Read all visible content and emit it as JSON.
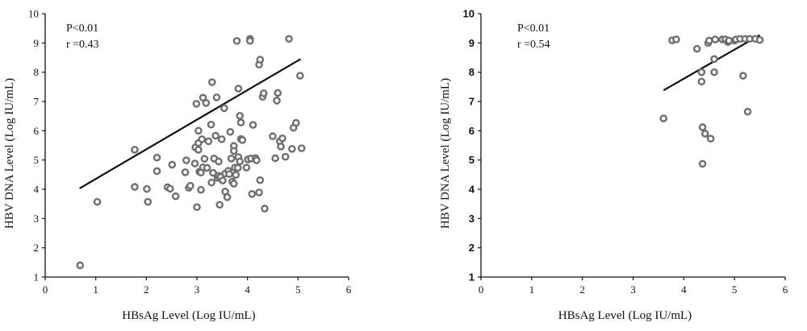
{
  "chart_data": [
    {
      "type": "scatter",
      "xlabel": "HBsAg Level (Log IU/mL)",
      "ylabel": "HBV DNA Level (Log IU/mL)",
      "xlim": [
        0,
        6
      ],
      "ylim": [
        1,
        10
      ],
      "xticks": [
        "0",
        "1",
        "2",
        "3",
        "4",
        "5",
        "6"
      ],
      "yticks": [
        "1",
        "2",
        "3",
        "4",
        "5",
        "6",
        "7",
        "8",
        "9",
        "10"
      ],
      "ytick_bold": false,
      "annotations": [
        "P<0.01",
        "r =0.43"
      ],
      "fit_line": [
        [
          0.68,
          4.03
        ],
        [
          5.05,
          8.45
        ]
      ],
      "points": [
        [
          0.69,
          1.4
        ],
        [
          1.03,
          3.57
        ],
        [
          1.77,
          5.35
        ],
        [
          1.77,
          4.08
        ],
        [
          2.01,
          4.01
        ],
        [
          2.03,
          3.57
        ],
        [
          2.21,
          5.08
        ],
        [
          2.21,
          4.62
        ],
        [
          2.42,
          4.07
        ],
        [
          2.47,
          4.02
        ],
        [
          2.51,
          4.84
        ],
        [
          2.58,
          3.76
        ],
        [
          2.77,
          4.58
        ],
        [
          2.79,
          4.99
        ],
        [
          2.84,
          4.05
        ],
        [
          2.87,
          4.12
        ],
        [
          2.96,
          4.88
        ],
        [
          2.97,
          5.43
        ],
        [
          2.99,
          6.92
        ],
        [
          3.0,
          3.39
        ],
        [
          3.03,
          5.35
        ],
        [
          3.03,
          6.0
        ],
        [
          3.03,
          5.58
        ],
        [
          3.05,
          4.6
        ],
        [
          3.08,
          3.98
        ],
        [
          3.08,
          4.57
        ],
        [
          3.1,
          5.71
        ],
        [
          3.12,
          7.13
        ],
        [
          3.12,
          4.75
        ],
        [
          3.15,
          5.04
        ],
        [
          3.18,
          6.95
        ],
        [
          3.2,
          4.73
        ],
        [
          3.23,
          5.64
        ],
        [
          3.28,
          6.21
        ],
        [
          3.29,
          4.23
        ],
        [
          3.3,
          7.66
        ],
        [
          3.32,
          4.56
        ],
        [
          3.34,
          5.05
        ],
        [
          3.37,
          5.83
        ],
        [
          3.39,
          7.14
        ],
        [
          3.41,
          4.39
        ],
        [
          3.43,
          4.46
        ],
        [
          3.43,
          4.95
        ],
        [
          3.45,
          3.47
        ],
        [
          3.47,
          4.42
        ],
        [
          3.49,
          5.71
        ],
        [
          3.51,
          4.3
        ],
        [
          3.54,
          6.77
        ],
        [
          3.56,
          4.54
        ],
        [
          3.56,
          3.92
        ],
        [
          3.6,
          3.73
        ],
        [
          3.62,
          4.63
        ],
        [
          3.64,
          4.52
        ],
        [
          3.66,
          5.96
        ],
        [
          3.68,
          5.05
        ],
        [
          3.7,
          4.26
        ],
        [
          3.73,
          5.48
        ],
        [
          3.73,
          5.31
        ],
        [
          3.73,
          4.19
        ],
        [
          3.75,
          4.74
        ],
        [
          3.77,
          4.49
        ],
        [
          3.79,
          9.07
        ],
        [
          3.81,
          4.73
        ],
        [
          3.82,
          7.44
        ],
        [
          3.82,
          5.1
        ],
        [
          3.85,
          4.95
        ],
        [
          3.85,
          6.51
        ],
        [
          3.87,
          5.72
        ],
        [
          3.87,
          6.28
        ],
        [
          3.9,
          5.68
        ],
        [
          3.98,
          4.74
        ],
        [
          4.01,
          5.02
        ],
        [
          4.05,
          9.14
        ],
        [
          4.05,
          9.07
        ],
        [
          4.07,
          5.05
        ],
        [
          4.09,
          3.84
        ],
        [
          4.11,
          6.2
        ],
        [
          4.16,
          5.06
        ],
        [
          4.18,
          4.99
        ],
        [
          4.23,
          8.26
        ],
        [
          4.23,
          3.89
        ],
        [
          4.25,
          8.43
        ],
        [
          4.25,
          4.31
        ],
        [
          4.3,
          7.16
        ],
        [
          4.32,
          7.28
        ],
        [
          4.34,
          3.34
        ],
        [
          4.5,
          5.81
        ],
        [
          4.55,
          5.06
        ],
        [
          4.58,
          7.03
        ],
        [
          4.6,
          7.29
        ],
        [
          4.64,
          5.64
        ],
        [
          4.66,
          5.46
        ],
        [
          4.69,
          5.74
        ],
        [
          4.75,
          5.11
        ],
        [
          4.82,
          9.14
        ],
        [
          4.88,
          5.38
        ],
        [
          4.91,
          6.1
        ],
        [
          4.96,
          6.27
        ],
        [
          5.04,
          7.88
        ],
        [
          5.07,
          5.4
        ]
      ]
    },
    {
      "type": "scatter",
      "xlabel": "HBsAg Level (Log IU/mL)",
      "ylabel": "HBV DNA Level (Log IU/mL)",
      "xlim": [
        0,
        6
      ],
      "ylim": [
        1,
        10
      ],
      "xticks": [
        "0",
        "1",
        "2",
        "3",
        "4",
        "5",
        "6"
      ],
      "yticks": [
        "1",
        "2",
        "3",
        "4",
        "5",
        "6",
        "7",
        "8",
        "9",
        "10"
      ],
      "ytick_bold": true,
      "annotations": [
        "P<0.01",
        "r =0.54"
      ],
      "fit_line": [
        [
          3.6,
          7.38
        ],
        [
          5.5,
          9.27
        ]
      ],
      "points": [
        [
          3.6,
          6.42
        ],
        [
          3.77,
          9.09
        ],
        [
          3.85,
          9.12
        ],
        [
          4.26,
          8.8
        ],
        [
          4.35,
          8.0
        ],
        [
          4.35,
          7.68
        ],
        [
          4.37,
          6.12
        ],
        [
          4.37,
          4.87
        ],
        [
          4.42,
          5.9
        ],
        [
          4.48,
          9.0
        ],
        [
          4.5,
          9.08
        ],
        [
          4.53,
          5.73
        ],
        [
          4.6,
          8.45
        ],
        [
          4.6,
          8.0
        ],
        [
          4.62,
          9.12
        ],
        [
          4.76,
          9.12
        ],
        [
          4.82,
          9.12
        ],
        [
          4.87,
          9.03
        ],
        [
          4.89,
          9.08
        ],
        [
          5.0,
          9.08
        ],
        [
          5.03,
          9.12
        ],
        [
          5.11,
          9.14
        ],
        [
          5.17,
          7.88
        ],
        [
          5.21,
          9.14
        ],
        [
          5.26,
          6.65
        ],
        [
          5.3,
          9.14
        ],
        [
          5.41,
          9.14
        ],
        [
          5.5,
          9.1
        ]
      ]
    }
  ]
}
